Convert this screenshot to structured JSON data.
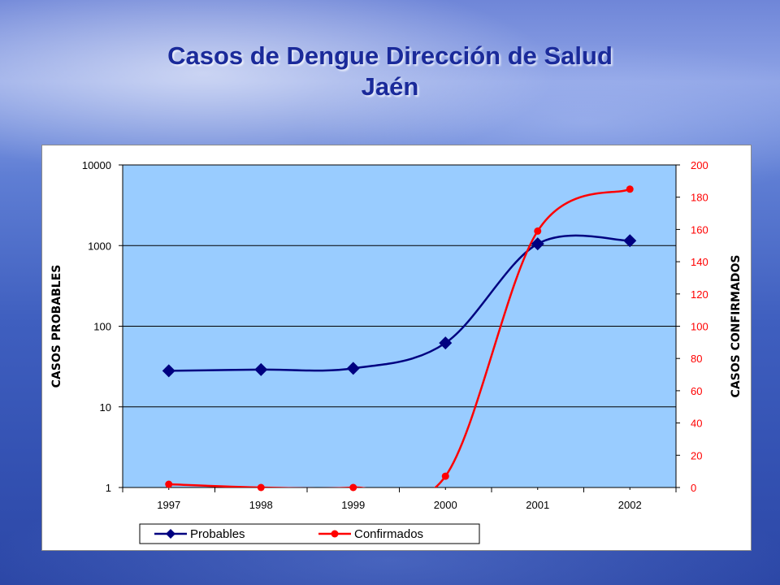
{
  "slide": {
    "title_line1": "Casos de Dengue  Dirección de Salud",
    "title_line2": "Jaén"
  },
  "chart_data": {
    "type": "line",
    "categories": [
      "1997",
      "1998",
      "1999",
      "2000",
      "2001",
      "2002"
    ],
    "y_left": {
      "label": "CASOS PROBABLES",
      "scale": "log",
      "range": [
        1,
        10000
      ],
      "ticks": [
        "1",
        "10",
        "100",
        "1000",
        "10000"
      ]
    },
    "y_right": {
      "label": "CASOS CONFIRMADOS",
      "scale": "linear",
      "range": [
        0,
        200
      ],
      "ticks": [
        "0",
        "20",
        "40",
        "60",
        "80",
        "100",
        "120",
        "140",
        "160",
        "180",
        "200"
      ],
      "color": "#FF0000"
    },
    "grid": true,
    "plot_background": "#99CCFF",
    "legend_position": "bottom",
    "series": [
      {
        "name": "Probables",
        "axis": "left",
        "color": "#000080",
        "marker": "diamond",
        "values": [
          28,
          29,
          30,
          62,
          1050,
          1150
        ]
      },
      {
        "name": "Confirmados",
        "axis": "right",
        "color": "#FF0000",
        "marker": "circle",
        "values": [
          2,
          0,
          0,
          7,
          159,
          185
        ]
      }
    ]
  }
}
